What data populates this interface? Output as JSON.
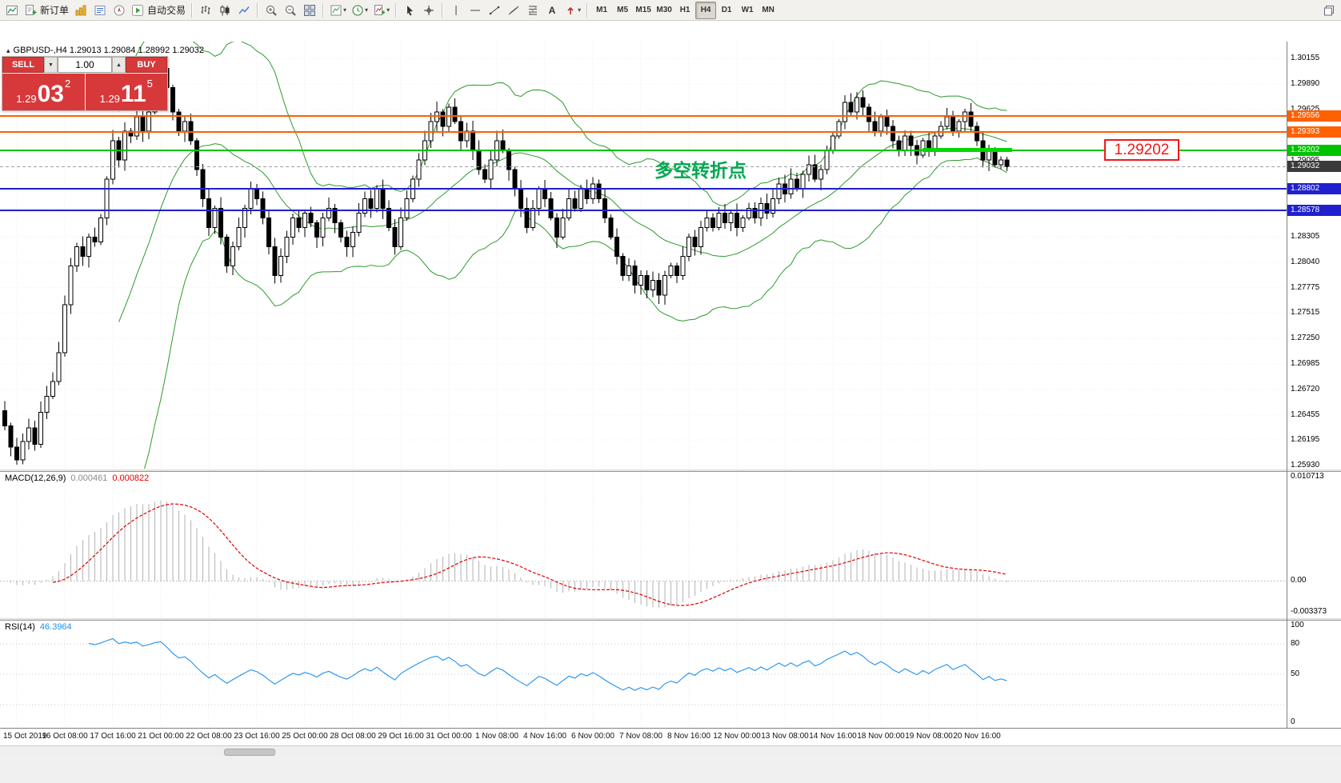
{
  "toolbar": {
    "new_order_label": "新订单",
    "autotrade_label": "自动交易",
    "timeframes": [
      "M1",
      "M5",
      "M15",
      "M30",
      "H1",
      "H4",
      "D1",
      "W1",
      "MN"
    ],
    "active_timeframe": "H4",
    "icons": [
      "new-chart",
      "new-order",
      "charts",
      "market-watch",
      "navigator",
      "auto-trading",
      "bar-chart",
      "candlestick-chart",
      "line-chart",
      "zoom-in",
      "zoom-out",
      "tile-windows",
      "clock",
      "indicators",
      "cursor",
      "crosshair",
      "vertical-line",
      "horizontal-line",
      "trendline",
      "channel",
      "fibonacci",
      "text",
      "arrows",
      "window-restore"
    ]
  },
  "one_click": {
    "sell_label": "SELL",
    "buy_label": "BUY",
    "volume": "1.00",
    "sell_price_big": "1.29",
    "sell_price_pips": "03",
    "sell_price_frac": "2",
    "buy_price_big": "1.29",
    "buy_price_pips": "11",
    "buy_price_frac": "5"
  },
  "chart": {
    "header_text": "GBPUSD-,H4 1.29013 1.29084 1.28992 1.29032",
    "annotation_text": "多空转折点",
    "price_box_text": "1.29202",
    "current_price": {
      "price": 1.29032,
      "label": "1.29032",
      "color": "#3a3a3a"
    },
    "levels": [
      {
        "price": 1.29556,
        "label": "1.29556",
        "color": "#ff6000"
      },
      {
        "price": 1.29393,
        "label": "1.29393",
        "color": "#ff6000"
      },
      {
        "price": 1.29202,
        "label": "1.29202",
        "color": "#00c300"
      },
      {
        "price": 1.28802,
        "label": "1.28802",
        "color": "#2020cf"
      },
      {
        "price": 1.28578,
        "label": "1.28578",
        "color": "#2020cf"
      }
    ],
    "y_ticks": [
      "1.30155",
      "1.29890",
      "1.29625",
      "1.29360",
      "1.29095",
      "1.28830",
      "1.28565",
      "1.28305",
      "1.28040",
      "1.27775",
      "1.27515",
      "1.27250",
      "1.26985",
      "1.26720",
      "1.26455",
      "1.26195",
      "1.25930"
    ]
  },
  "chart_data": [
    {
      "type": "candlestick",
      "title": "GBPUSD-,H4",
      "period": "H4",
      "first_open": 1.265,
      "closes": [
        1.2634,
        1.2612,
        1.2599,
        1.2618,
        1.2632,
        1.2615,
        1.2648,
        1.2665,
        1.268,
        1.271,
        1.276,
        1.28,
        1.282,
        1.281,
        1.283,
        1.2825,
        1.285,
        1.289,
        1.293,
        1.291,
        1.294,
        1.2935,
        1.2955,
        1.294,
        1.296,
        1.299,
        1.3005,
        1.2985,
        1.296,
        1.294,
        1.295,
        1.293,
        1.29,
        1.287,
        1.284,
        1.286,
        1.283,
        1.28,
        1.282,
        1.284,
        1.286,
        1.288,
        1.287,
        1.285,
        1.282,
        1.279,
        1.281,
        1.283,
        1.285,
        1.284,
        1.2855,
        1.2845,
        1.283,
        1.285,
        1.286,
        1.2845,
        1.283,
        1.282,
        1.2835,
        1.2855,
        1.287,
        1.286,
        1.288,
        1.286,
        1.284,
        1.282,
        1.285,
        1.287,
        1.289,
        1.291,
        1.293,
        1.295,
        1.296,
        1.2945,
        1.2965,
        1.295,
        1.293,
        1.294,
        1.292,
        1.29,
        1.289,
        1.291,
        1.293,
        1.292,
        1.29,
        1.288,
        1.286,
        1.284,
        1.286,
        1.288,
        1.287,
        1.285,
        1.283,
        1.285,
        1.287,
        1.286,
        1.288,
        1.287,
        1.2885,
        1.287,
        1.285,
        1.283,
        1.281,
        1.279,
        1.28,
        1.278,
        1.279,
        1.2775,
        1.2785,
        1.277,
        1.279,
        1.28,
        1.279,
        1.281,
        1.283,
        1.282,
        1.284,
        1.285,
        1.284,
        1.2855,
        1.2845,
        1.2855,
        1.284,
        1.285,
        1.286,
        1.285,
        1.2865,
        1.2855,
        1.287,
        1.2885,
        1.2875,
        1.289,
        1.288,
        1.2895,
        1.2905,
        1.289,
        1.29,
        1.292,
        1.2935,
        1.295,
        1.297,
        1.296,
        1.2975,
        1.2965,
        1.295,
        1.294,
        1.2955,
        1.2945,
        1.293,
        1.292,
        1.2935,
        1.2925,
        1.2915,
        1.293,
        1.292,
        1.2935,
        1.2945,
        1.2955,
        1.294,
        1.295,
        1.296,
        1.2945,
        1.293,
        1.291,
        1.292,
        1.2905,
        1.291,
        1.29032
      ],
      "x_labels": [
        "15 Oct 2019",
        "16 Oct 08:00",
        "17 Oct 16:00",
        "21 Oct 00:00",
        "22 Oct 08:00",
        "23 Oct 16:00",
        "25 Oct 00:00",
        "28 Oct 08:00",
        "29 Oct 16:00",
        "31 Oct 00:00",
        "1 Nov 08:00",
        "4 Nov 16:00",
        "6 Nov 00:00",
        "7 Nov 08:00",
        "8 Nov 16:00",
        "12 Nov 00:00",
        "13 Nov 08:00",
        "14 Nov 16:00",
        "18 Nov 00:00",
        "19 Nov 08:00",
        "20 Nov 16:00"
      ],
      "overlays": {
        "bollinger": {
          "period": 20,
          "deviation": 2,
          "color": "#2d9b2d"
        }
      }
    },
    {
      "type": "bar",
      "name": "MACD(12,26,9)",
      "values_display": [
        "0.000461",
        "0.000822"
      ],
      "y_axis": [
        "0.010713",
        "0.00",
        "-0.003373"
      ]
    },
    {
      "type": "line",
      "name": "RSI(14)",
      "value_display": "46.3964",
      "y_axis": [
        "100",
        "80",
        "50",
        "0"
      ],
      "level_lines": [
        80,
        50,
        20
      ]
    }
  ],
  "macd": {
    "label": "MACD(12,26,9)",
    "value_main": "0.000461",
    "value_signal": "0.000822",
    "axis_top": "0.010713",
    "axis_zero": "0.00",
    "axis_bottom": "-0.003373",
    "histogram_color": "#b3b3b3",
    "signal_color": "#e00000"
  },
  "rsi": {
    "label": "RSI(14)",
    "value": "46.3964",
    "axis": [
      "100",
      "80",
      "50",
      "0"
    ],
    "levels": [
      80,
      50,
      20
    ],
    "line_color": "#2090f0"
  }
}
